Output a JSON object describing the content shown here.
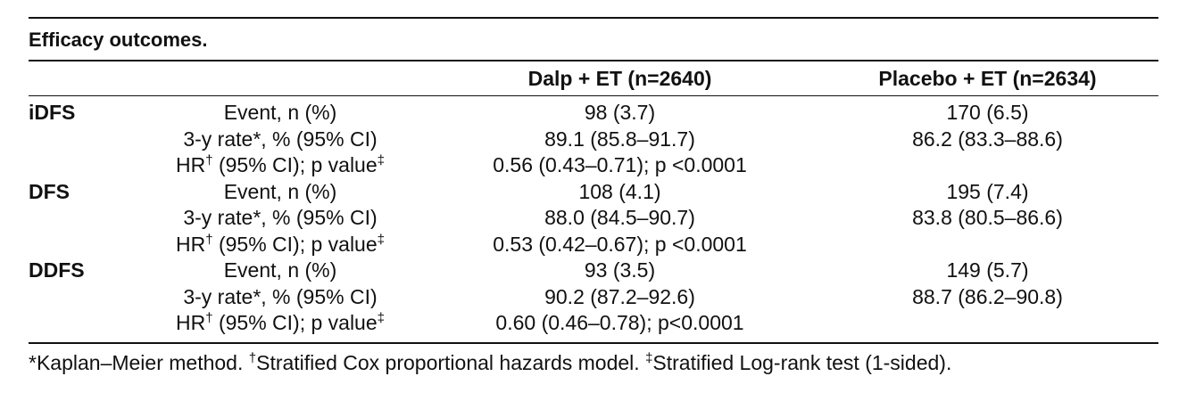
{
  "caption": "Efficacy outcomes.",
  "columns": {
    "blank": "",
    "metric": "",
    "dalp": "Dalp + ET (n=2640)",
    "placebo": "Placebo + ET (n=2634)"
  },
  "outcomes": [
    {
      "label": "iDFS",
      "rows": [
        {
          "metric": "Event, n (%)",
          "dalp": "98 (3.7)",
          "placebo": "170 (6.5)"
        },
        {
          "metric": "3-y rate*, % (95% CI)",
          "dalp": "89.1 (85.8–91.7)",
          "placebo": "86.2 (83.3–88.6)"
        },
        {
          "metric_pre": "HR",
          "metric_sup": "†",
          "metric_post": " (95% CI); p value",
          "metric_sup2": "‡",
          "dalp": "0.56 (0.43–0.71); p <0.0001",
          "placebo": ""
        }
      ]
    },
    {
      "label": "DFS",
      "rows": [
        {
          "metric": "Event, n (%)",
          "dalp": "108 (4.1)",
          "placebo": "195 (7.4)"
        },
        {
          "metric": "3-y rate*, % (95% CI)",
          "dalp": "88.0 (84.5–90.7)",
          "placebo": "83.8 (80.5–86.6)"
        },
        {
          "metric_pre": "HR",
          "metric_sup": "†",
          "metric_post": " (95% CI); p value",
          "metric_sup2": "‡",
          "dalp": "0.53 (0.42–0.67); p <0.0001",
          "placebo": ""
        }
      ]
    },
    {
      "label": "DDFS",
      "rows": [
        {
          "metric": "Event, n (%)",
          "dalp": "93 (3.5)",
          "placebo": "149 (5.7)"
        },
        {
          "metric": "3-y rate*, % (95% CI)",
          "dalp": "90.2 (87.2–92.6)",
          "placebo": "88.7 (86.2–90.8)"
        },
        {
          "metric_pre": "HR",
          "metric_sup": "†",
          "metric_post": " (95% CI); p value",
          "metric_sup2": "‡",
          "dalp": "0.60 (0.46–0.78); p<0.0001",
          "placebo": ""
        }
      ]
    }
  ],
  "footnote": {
    "km": "*Kaplan–Meier method. ",
    "dagger": "†",
    "cox": "Stratified Cox proportional hazards model. ",
    "ddagger": "‡",
    "logrank": "Stratified Log-rank test (1-sided)."
  }
}
